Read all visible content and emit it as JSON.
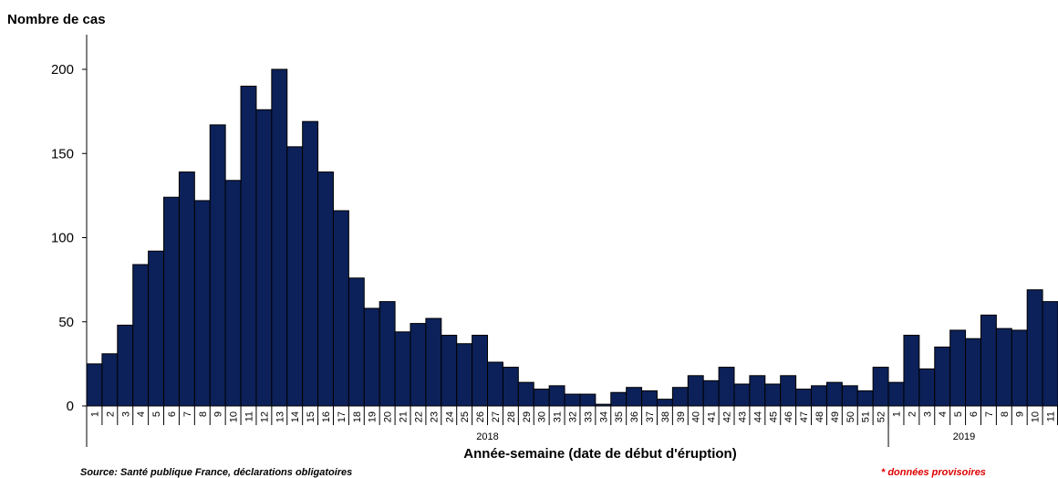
{
  "chart_data": {
    "type": "bar",
    "ylabel": "Nombre de cas",
    "xlabel": "Année-semaine (date de début d'éruption)",
    "ylim": [
      0,
      200
    ],
    "yticks": [
      0,
      50,
      100,
      150,
      200
    ],
    "grid": false,
    "legend": "none",
    "bar_color": "#0c2159",
    "groups": [
      {
        "label": "2018",
        "categories": [
          "1",
          "2",
          "3",
          "4",
          "5",
          "6",
          "7",
          "8",
          "9",
          "10",
          "11",
          "12",
          "13",
          "14",
          "15",
          "16",
          "17",
          "18",
          "19",
          "20",
          "21",
          "22",
          "23",
          "24",
          "25",
          "26",
          "27",
          "28",
          "29",
          "30",
          "31",
          "32",
          "33",
          "34",
          "35",
          "36",
          "37",
          "38",
          "39",
          "40",
          "41",
          "42",
          "43",
          "44",
          "45",
          "46",
          "47",
          "48",
          "49",
          "50",
          "51",
          "52"
        ]
      },
      {
        "label": "2019",
        "categories": [
          "1",
          "2",
          "3",
          "4",
          "5",
          "6",
          "7",
          "8",
          "9",
          "10",
          "11"
        ]
      }
    ],
    "values": [
      25,
      31,
      48,
      84,
      92,
      124,
      139,
      122,
      167,
      134,
      190,
      176,
      200,
      154,
      169,
      139,
      116,
      76,
      58,
      62,
      44,
      49,
      52,
      42,
      37,
      42,
      26,
      23,
      14,
      10,
      12,
      7,
      7,
      1,
      8,
      11,
      9,
      4,
      11,
      18,
      15,
      23,
      13,
      18,
      13,
      18,
      10,
      12,
      14,
      12,
      9,
      23,
      14,
      42,
      22,
      35,
      45,
      40,
      54,
      46,
      45,
      69,
      62
    ]
  },
  "source": "Source: Santé publique France, déclarations obligatoires",
  "provisional_note": "* données provisoires"
}
